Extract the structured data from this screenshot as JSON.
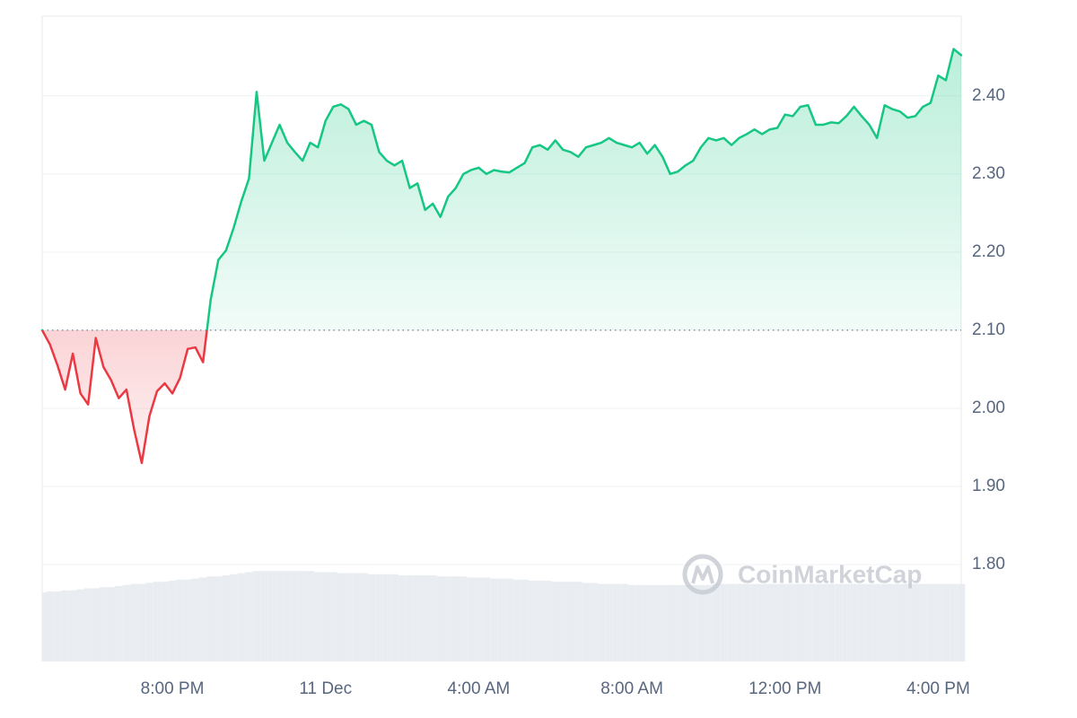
{
  "chart_data": {
    "type": "line",
    "watermark": "CoinMarketCap",
    "categories": [
      null,
      null,
      null,
      null,
      null,
      null,
      null,
      null,
      null,
      null,
      null,
      null,
      null,
      null,
      null,
      null,
      null,
      "8:00 PM",
      null,
      null,
      null,
      null,
      null,
      null,
      null,
      null,
      null,
      null,
      null,
      null,
      null,
      null,
      null,
      null,
      null,
      null,
      null,
      "11 Dec",
      null,
      null,
      null,
      null,
      null,
      null,
      null,
      null,
      null,
      null,
      null,
      null,
      null,
      null,
      null,
      null,
      null,
      null,
      null,
      "4:00 AM",
      null,
      null,
      null,
      null,
      null,
      null,
      null,
      null,
      null,
      null,
      null,
      null,
      null,
      null,
      null,
      null,
      null,
      null,
      null,
      "8:00 AM",
      null,
      null,
      null,
      null,
      null,
      null,
      null,
      null,
      null,
      null,
      null,
      null,
      null,
      null,
      null,
      null,
      null,
      null,
      null,
      "12:00 PM",
      null,
      null,
      null,
      null,
      null,
      null,
      null,
      null,
      null,
      null,
      null,
      null,
      null,
      null,
      null,
      null,
      null,
      null,
      null,
      "4:00 PM",
      null,
      null,
      null
    ],
    "values": [
      2.1,
      2.082,
      2.055,
      2.024,
      2.07,
      2.019,
      2.005,
      2.09,
      2.053,
      2.036,
      2.013,
      2.024,
      1.973,
      1.93,
      1.99,
      2.022,
      2.032,
      2.019,
      2.039,
      2.076,
      2.078,
      2.059,
      2.139,
      2.19,
      2.202,
      2.231,
      2.265,
      2.294,
      2.405,
      2.317,
      2.34,
      2.363,
      2.34,
      2.328,
      2.317,
      2.34,
      2.334,
      2.368,
      2.386,
      2.389,
      2.383,
      2.363,
      2.368,
      2.363,
      2.328,
      2.317,
      2.311,
      2.317,
      2.282,
      2.288,
      2.254,
      2.262,
      2.245,
      2.271,
      2.282,
      2.3,
      2.305,
      2.308,
      2.3,
      2.305,
      2.303,
      2.302,
      2.308,
      2.314,
      2.334,
      2.337,
      2.331,
      2.343,
      2.331,
      2.328,
      2.322,
      2.334,
      2.337,
      2.34,
      2.346,
      2.34,
      2.337,
      2.334,
      2.34,
      2.326,
      2.337,
      2.322,
      2.3,
      2.303,
      2.311,
      2.317,
      2.334,
      2.346,
      2.343,
      2.346,
      2.337,
      2.346,
      2.351,
      2.357,
      2.351,
      2.357,
      2.359,
      2.376,
      2.374,
      2.386,
      2.388,
      2.363,
      2.363,
      2.366,
      2.365,
      2.374,
      2.386,
      2.374,
      2.363,
      2.346,
      2.388,
      2.383,
      2.38,
      2.372,
      2.374,
      2.386,
      2.391,
      2.426,
      2.42,
      2.46,
      2.452
    ],
    "volume": [
      64,
      65,
      65,
      66,
      66,
      67,
      68,
      68,
      69,
      69,
      70,
      71,
      72,
      72,
      73,
      74,
      74,
      75,
      76,
      76,
      77,
      78,
      79,
      79,
      80,
      81,
      82,
      83,
      84,
      84,
      84,
      84,
      84,
      84,
      84,
      84,
      83,
      83,
      83,
      82,
      82,
      82,
      82,
      81,
      81,
      81,
      81,
      80,
      80,
      80,
      80,
      80,
      79,
      79,
      79,
      79,
      78,
      78,
      78,
      77,
      77,
      77,
      76,
      76,
      75,
      75,
      75,
      74,
      74,
      74,
      74,
      73,
      73,
      72,
      72,
      72,
      72,
      71,
      71,
      71,
      71,
      71,
      71,
      71,
      71,
      71,
      71,
      71,
      72,
      72,
      72,
      72,
      72,
      72,
      72,
      72,
      72,
      72,
      72,
      72,
      72,
      72,
      72,
      72,
      72,
      72,
      72,
      72,
      72,
      72,
      72,
      72,
      72,
      72,
      72,
      72,
      72,
      72,
      72,
      72,
      72
    ],
    "volume_lim": [
      0,
      100
    ],
    "baseline": 2.1,
    "up_color": "#16c784",
    "down_color": "#ea3943",
    "volume_color": "#e9edf2",
    "ylim": [
      1.676,
      2.502
    ],
    "yticks": [
      {
        "value": 1.8,
        "label": "1.80"
      },
      {
        "value": 1.9,
        "label": "1.90"
      },
      {
        "value": 2.0,
        "label": "2.00"
      },
      {
        "value": 2.1,
        "label": "2.10"
      },
      {
        "value": 2.2,
        "label": "2.20"
      },
      {
        "value": 2.3,
        "label": "2.30"
      },
      {
        "value": 2.4,
        "label": "2.40"
      }
    ],
    "grid": true
  }
}
